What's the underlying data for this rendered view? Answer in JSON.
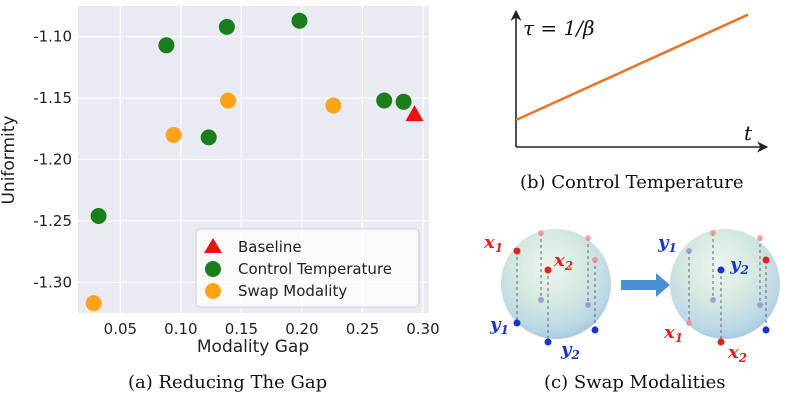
{
  "chart_data": [
    {
      "type": "scatter",
      "caption": "(a) Reducing The Gap",
      "xlabel": "Modality Gap",
      "ylabel": "Uniformity",
      "xlim": [
        0.015,
        0.305
      ],
      "ylim": [
        -1.325,
        -1.075
      ],
      "xticks": [
        0.05,
        0.1,
        0.15,
        0.2,
        0.25,
        0.3
      ],
      "xtick_labels": [
        "0.05",
        "0.10",
        "0.15",
        "0.20",
        "0.25",
        "0.30"
      ],
      "yticks": [
        -1.1,
        -1.15,
        -1.2,
        -1.25,
        -1.3
      ],
      "ytick_labels": [
        "-1.10",
        "-1.15",
        "-1.20",
        "-1.25",
        "-1.30"
      ],
      "grid": true,
      "legend_position": "lower-right",
      "series": [
        {
          "name": "Baseline",
          "marker": "triangle",
          "color": "#ee1111",
          "points": [
            [
              0.293,
              -1.163
            ]
          ]
        },
        {
          "name": "Control Temperature",
          "marker": "circle",
          "color": "#1a7f1a",
          "points": [
            [
              0.032,
              -1.246
            ],
            [
              0.088,
              -1.107
            ],
            [
              0.123,
              -1.182
            ],
            [
              0.138,
              -1.092
            ],
            [
              0.198,
              -1.087
            ],
            [
              0.268,
              -1.152
            ],
            [
              0.284,
              -1.153
            ]
          ]
        },
        {
          "name": "Swap Modality",
          "marker": "circle",
          "color": "#ffa31a",
          "points": [
            [
              0.028,
              -1.317
            ],
            [
              0.094,
              -1.18
            ],
            [
              0.139,
              -1.152
            ],
            [
              0.226,
              -1.156
            ]
          ]
        }
      ]
    },
    {
      "type": "line",
      "caption": "(b) Control Temperature",
      "title": "τ = 1/β",
      "xlabel": "t",
      "color": "#e8762a",
      "x": [
        0,
        1
      ],
      "y": [
        0.2,
        0.98
      ],
      "xlim": [
        0,
        1
      ],
      "ylim": [
        0,
        1
      ]
    }
  ],
  "diagram": {
    "caption": "(c) Swap Modalities",
    "arrow_color": "#4a90d9",
    "left_sphere": {
      "x1": "x",
      "x1_sub": "1",
      "x2": "x",
      "x2_sub": "2",
      "y1": "y",
      "y1_sub": "1",
      "y2": "y",
      "y2_sub": "2"
    },
    "right_sphere": {
      "y1": "y",
      "y1_sub": "1",
      "y2": "y",
      "y2_sub": "2",
      "x1": "x",
      "x1_sub": "1",
      "x2": "x",
      "x2_sub": "2"
    },
    "red_color": "#dd2222",
    "blue_color": "#1a33cc"
  }
}
